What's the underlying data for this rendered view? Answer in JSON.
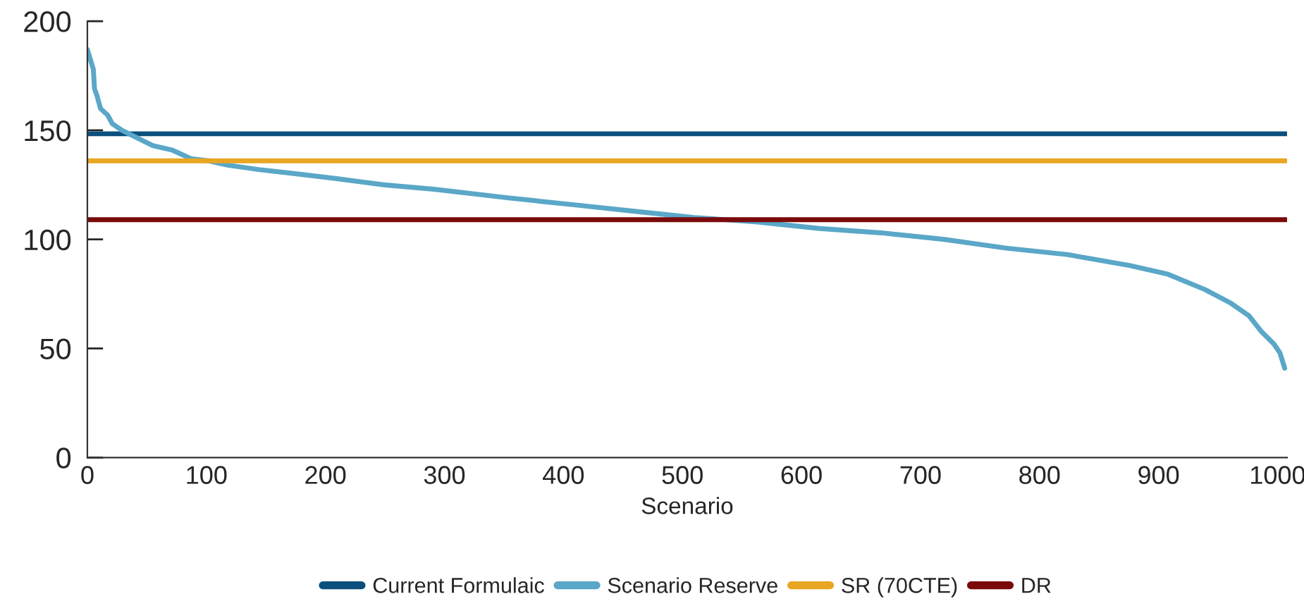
{
  "chart_data": {
    "type": "line",
    "xlabel": "Scenario",
    "xlim": [
      0,
      1008
    ],
    "xticks": [
      0,
      100,
      200,
      300,
      400,
      500,
      600,
      700,
      800,
      900,
      1000
    ],
    "ylim": [
      0,
      200
    ],
    "yticks": [
      0,
      50,
      100,
      150,
      200
    ],
    "grid": false,
    "legend": "bottom",
    "marker": "none",
    "line_style": "solid",
    "series": [
      {
        "name": "Current Formulaic",
        "color": "#0b4f7c",
        "x": [
          0,
          1008
        ],
        "values": [
          148.4,
          148.4
        ]
      },
      {
        "name": "Scenario Reserve",
        "color": "#5aa7c8",
        "x": [
          0,
          5,
          6,
          8,
          11,
          17,
          21,
          29,
          40,
          55,
          71,
          87,
          102,
          118,
          144,
          176,
          207,
          249,
          291,
          354,
          406,
          458,
          510,
          563,
          615,
          667,
          720,
          772,
          824,
          876,
          908,
          939,
          960,
          976,
          986,
          997,
          1002,
          1006
        ],
        "values": [
          187,
          178,
          169,
          166,
          160,
          157,
          153,
          150,
          147,
          143,
          141,
          137,
          136,
          134,
          132,
          130,
          128,
          125,
          123,
          119,
          116,
          113,
          110,
          108,
          105,
          103,
          100,
          96,
          93,
          88,
          84,
          77,
          71,
          65,
          58,
          52,
          48,
          41
        ]
      },
      {
        "name": "SR (70CTE)",
        "color": "#e8a623",
        "x": [
          0,
          1008
        ],
        "values": [
          136,
          136
        ]
      },
      {
        "name": "DR",
        "color": "#7a0a0a",
        "x": [
          0,
          1008
        ],
        "values": [
          109,
          109
        ]
      }
    ]
  }
}
